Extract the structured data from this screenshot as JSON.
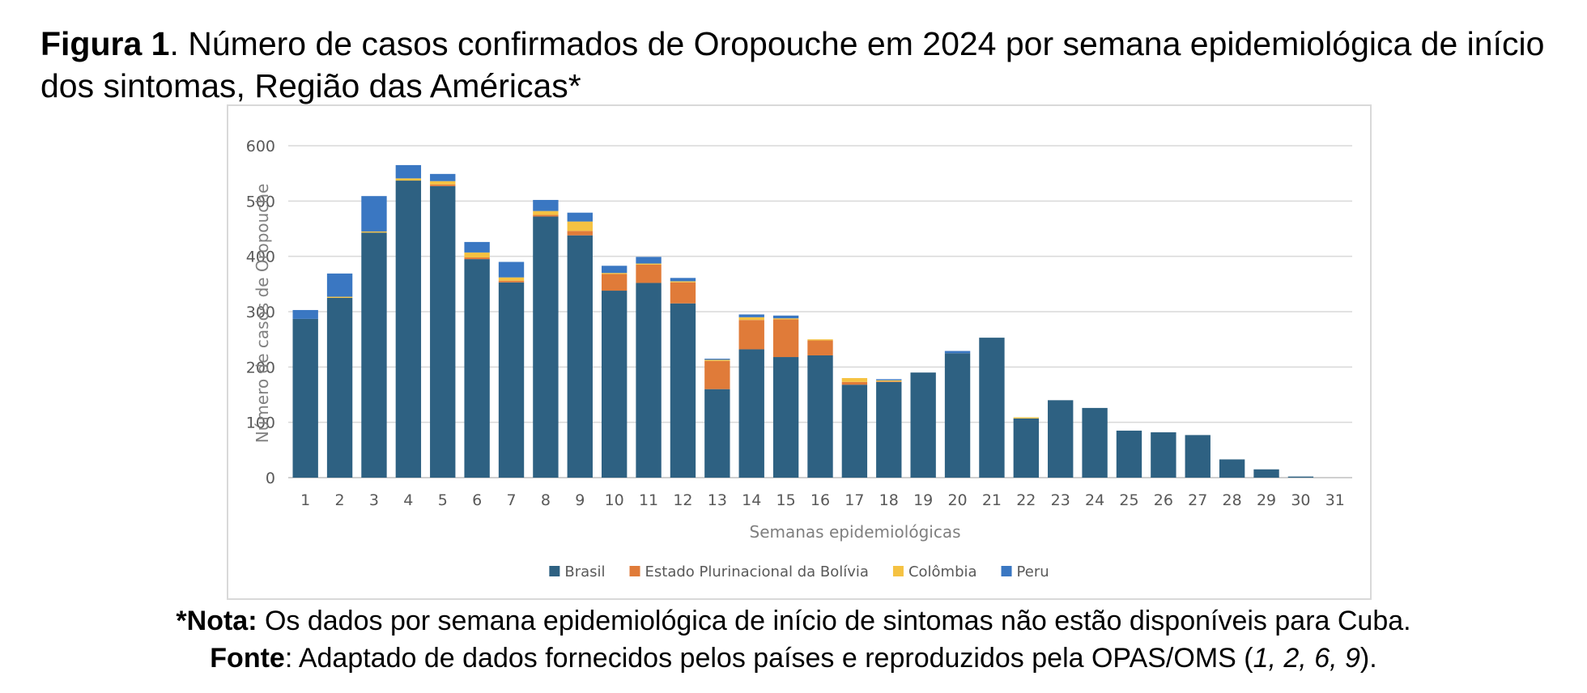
{
  "caption": {
    "label": "Figura 1",
    "text": ". Número de casos confirmados de Oropouche em 2024 por semana epidemiológica de início dos sintomas, Região das Américas*"
  },
  "notes": {
    "note_label": "*Nota:",
    "note_text": " Os dados por semana epidemiológica de início de sintomas não estão disponíveis para Cuba.",
    "source_label": "Fonte",
    "source_text": ": Adaptado de dados fornecidos pelos países e reproduzidos pela OPAS/OMS (",
    "source_refs": "1, 2, 6, 9",
    "source_end": ")."
  },
  "chart_data": {
    "type": "bar",
    "stacked": true,
    "xlabel": "Semanas epidemiológicas",
    "ylabel": "Número de casos de Oropouche",
    "ylim": [
      0,
      600
    ],
    "yticks": [
      0,
      100,
      200,
      300,
      400,
      500,
      600
    ],
    "grid": true,
    "legend_position": "bottom",
    "categories": [
      "1",
      "2",
      "3",
      "4",
      "5",
      "6",
      "7",
      "8",
      "9",
      "10",
      "11",
      "12",
      "13",
      "14",
      "15",
      "16",
      "17",
      "18",
      "19",
      "20",
      "21",
      "22",
      "23",
      "24",
      "25",
      "26",
      "27",
      "28",
      "29",
      "30",
      "31"
    ],
    "series": [
      {
        "name": "Brasil",
        "color": "#2e6182",
        "values": [
          287,
          325,
          443,
          537,
          527,
          395,
          353,
          472,
          438,
          338,
          352,
          315,
          160,
          232,
          218,
          221,
          168,
          173,
          190,
          225,
          253,
          107,
          140,
          126,
          85,
          82,
          77,
          33,
          15,
          2,
          0
        ]
      },
      {
        "name": "Estado Plurinacional da Bolívia",
        "color": "#e07b39",
        "values": [
          0,
          0,
          0,
          0,
          3,
          3,
          3,
          3,
          8,
          30,
          33,
          38,
          51,
          53,
          68,
          27,
          5,
          1,
          0,
          0,
          0,
          0,
          0,
          0,
          0,
          0,
          0,
          0,
          0,
          0,
          0
        ]
      },
      {
        "name": "Colômbia",
        "color": "#f5c242",
        "values": [
          0,
          2,
          2,
          4,
          6,
          9,
          6,
          7,
          17,
          2,
          2,
          2,
          2,
          5,
          2,
          2,
          7,
          2,
          0,
          0,
          0,
          2,
          0,
          0,
          0,
          0,
          0,
          0,
          0,
          0,
          0
        ]
      },
      {
        "name": "Peru",
        "color": "#3a77c2",
        "values": [
          16,
          42,
          64,
          24,
          13,
          19,
          28,
          20,
          16,
          13,
          12,
          6,
          2,
          5,
          5,
          0,
          0,
          2,
          0,
          4,
          0,
          0,
          0,
          0,
          0,
          0,
          0,
          0,
          0,
          0,
          0
        ]
      }
    ]
  }
}
